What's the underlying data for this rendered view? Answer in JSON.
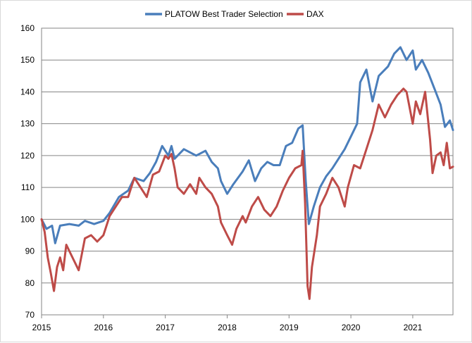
{
  "chart_data": {
    "type": "line",
    "title": "",
    "xlabel": "",
    "ylabel": "",
    "xlim": [
      2015,
      2021.65
    ],
    "ylim": [
      70,
      160
    ],
    "x_ticks": [
      "2015",
      "2016",
      "2017",
      "2018",
      "2019",
      "2020",
      "2021"
    ],
    "y_ticks": [
      "70",
      "80",
      "90",
      "100",
      "110",
      "120",
      "130",
      "140",
      "150",
      "160"
    ],
    "grid": "horizontal",
    "legend": "top-center",
    "series": [
      {
        "name": "PLATOW Best Trader Selection",
        "color": "#4a7ebb",
        "points": [
          [
            2015.0,
            100
          ],
          [
            2015.08,
            97
          ],
          [
            2015.17,
            98
          ],
          [
            2015.22,
            92.5
          ],
          [
            2015.3,
            98
          ],
          [
            2015.45,
            98.5
          ],
          [
            2015.6,
            98
          ],
          [
            2015.7,
            99.5
          ],
          [
            2015.85,
            98.5
          ],
          [
            2016.0,
            99.5
          ],
          [
            2016.1,
            102
          ],
          [
            2016.25,
            107
          ],
          [
            2016.4,
            109
          ],
          [
            2016.5,
            113
          ],
          [
            2016.65,
            112
          ],
          [
            2016.75,
            114.5
          ],
          [
            2016.85,
            118
          ],
          [
            2016.95,
            123
          ],
          [
            2017.05,
            120
          ],
          [
            2017.1,
            123
          ],
          [
            2017.15,
            119
          ],
          [
            2017.3,
            122
          ],
          [
            2017.5,
            120
          ],
          [
            2017.65,
            121.5
          ],
          [
            2017.75,
            118
          ],
          [
            2017.85,
            116
          ],
          [
            2017.9,
            112
          ],
          [
            2018.0,
            108
          ],
          [
            2018.1,
            111
          ],
          [
            2018.25,
            115
          ],
          [
            2018.35,
            118.5
          ],
          [
            2018.45,
            112
          ],
          [
            2018.55,
            116
          ],
          [
            2018.65,
            118
          ],
          [
            2018.75,
            117
          ],
          [
            2018.85,
            117
          ],
          [
            2018.95,
            123
          ],
          [
            2019.05,
            124
          ],
          [
            2019.15,
            128.5
          ],
          [
            2019.22,
            129.5
          ],
          [
            2019.27,
            112
          ],
          [
            2019.32,
            98.5
          ],
          [
            2019.4,
            104
          ],
          [
            2019.5,
            110
          ],
          [
            2019.6,
            113.5
          ],
          [
            2019.7,
            116
          ],
          [
            2019.8,
            119
          ],
          [
            2019.9,
            122
          ],
          [
            2020.0,
            126
          ],
          [
            2020.1,
            130
          ],
          [
            2020.15,
            143
          ],
          [
            2020.25,
            147
          ],
          [
            2020.35,
            137
          ],
          [
            2020.45,
            145
          ],
          [
            2020.6,
            148
          ],
          [
            2020.7,
            152
          ],
          [
            2020.8,
            154
          ],
          [
            2020.9,
            150
          ],
          [
            2021.0,
            153
          ],
          [
            2021.05,
            147
          ],
          [
            2021.15,
            150
          ],
          [
            2021.25,
            146
          ],
          [
            2021.35,
            141
          ],
          [
            2021.45,
            136
          ],
          [
            2021.52,
            129
          ],
          [
            2021.6,
            131
          ],
          [
            2021.65,
            128
          ]
        ]
      },
      {
        "name": "DAX",
        "color": "#be4b48",
        "points": [
          [
            2015.0,
            100
          ],
          [
            2015.05,
            96
          ],
          [
            2015.1,
            88
          ],
          [
            2015.15,
            83
          ],
          [
            2015.2,
            77.5
          ],
          [
            2015.25,
            85
          ],
          [
            2015.3,
            88
          ],
          [
            2015.35,
            84
          ],
          [
            2015.4,
            92
          ],
          [
            2015.5,
            88
          ],
          [
            2015.6,
            84
          ],
          [
            2015.7,
            94
          ],
          [
            2015.8,
            95
          ],
          [
            2015.9,
            93
          ],
          [
            2016.0,
            95
          ],
          [
            2016.1,
            101
          ],
          [
            2016.2,
            104
          ],
          [
            2016.3,
            107
          ],
          [
            2016.4,
            107
          ],
          [
            2016.5,
            113
          ],
          [
            2016.6,
            110
          ],
          [
            2016.7,
            107
          ],
          [
            2016.8,
            114
          ],
          [
            2016.9,
            115
          ],
          [
            2017.0,
            120
          ],
          [
            2017.05,
            119
          ],
          [
            2017.1,
            120.5
          ],
          [
            2017.15,
            116
          ],
          [
            2017.2,
            110
          ],
          [
            2017.3,
            108
          ],
          [
            2017.4,
            111
          ],
          [
            2017.5,
            108
          ],
          [
            2017.55,
            113
          ],
          [
            2017.65,
            110
          ],
          [
            2017.75,
            108
          ],
          [
            2017.85,
            104
          ],
          [
            2017.9,
            99
          ],
          [
            2018.0,
            95
          ],
          [
            2018.08,
            92
          ],
          [
            2018.15,
            97
          ],
          [
            2018.25,
            101
          ],
          [
            2018.3,
            99
          ],
          [
            2018.4,
            104
          ],
          [
            2018.5,
            107
          ],
          [
            2018.6,
            103
          ],
          [
            2018.7,
            101
          ],
          [
            2018.8,
            104
          ],
          [
            2018.9,
            109
          ],
          [
            2019.0,
            113
          ],
          [
            2019.1,
            116
          ],
          [
            2019.2,
            117
          ],
          [
            2019.22,
            121.5
          ],
          [
            2019.26,
            105
          ],
          [
            2019.3,
            79
          ],
          [
            2019.33,
            75
          ],
          [
            2019.37,
            85
          ],
          [
            2019.45,
            95
          ],
          [
            2019.5,
            104
          ],
          [
            2019.6,
            108
          ],
          [
            2019.7,
            113
          ],
          [
            2019.8,
            110
          ],
          [
            2019.9,
            104
          ],
          [
            2019.95,
            110
          ],
          [
            2020.05,
            117
          ],
          [
            2020.15,
            116
          ],
          [
            2020.25,
            122
          ],
          [
            2020.35,
            128
          ],
          [
            2020.45,
            136
          ],
          [
            2020.55,
            132
          ],
          [
            2020.65,
            136
          ],
          [
            2020.75,
            139
          ],
          [
            2020.85,
            141
          ],
          [
            2020.9,
            140
          ],
          [
            2021.0,
            130
          ],
          [
            2021.05,
            137
          ],
          [
            2021.12,
            133
          ],
          [
            2021.2,
            140
          ],
          [
            2021.28,
            125
          ],
          [
            2021.32,
            114.5
          ],
          [
            2021.38,
            120
          ],
          [
            2021.45,
            121
          ],
          [
            2021.5,
            117
          ],
          [
            2021.55,
            124
          ],
          [
            2021.6,
            116
          ],
          [
            2021.65,
            116.5
          ]
        ]
      }
    ]
  }
}
